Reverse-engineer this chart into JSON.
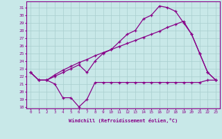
{
  "xlabel": "Windchill (Refroidissement éolien,°C)",
  "x_full": [
    0,
    1,
    2,
    3,
    4,
    5,
    6,
    7,
    8,
    9,
    10,
    11,
    12,
    13,
    14,
    15,
    16,
    17,
    18,
    19,
    20,
    21,
    22,
    23
  ],
  "line_dip_x": [
    0,
    1,
    2,
    3,
    4,
    5,
    6,
    7,
    8,
    9,
    10,
    11,
    12,
    13,
    14,
    15,
    16,
    17,
    18,
    19,
    20,
    21,
    22,
    23
  ],
  "line_dip_y": [
    22.5,
    21.5,
    21.5,
    21.0,
    19.2,
    19.2,
    18.0,
    19.0,
    21.2,
    21.2,
    21.2,
    21.2,
    21.2,
    21.2,
    21.2,
    21.2,
    21.2,
    21.2,
    21.2,
    21.2,
    21.2,
    21.2,
    21.5,
    21.5
  ],
  "line_curve": [
    22.5,
    21.5,
    21.5,
    22.0,
    22.5,
    23.0,
    23.5,
    22.5,
    24.0,
    25.0,
    25.5,
    26.5,
    27.5,
    28.0,
    29.5,
    30.0,
    31.2,
    31.0,
    30.5,
    29.0,
    27.5,
    25.0,
    22.5,
    21.5
  ],
  "line_diag": [
    22.5,
    21.5,
    21.5,
    22.2,
    22.8,
    23.3,
    23.8,
    24.2,
    24.7,
    25.1,
    25.5,
    25.9,
    26.3,
    26.7,
    27.1,
    27.5,
    27.9,
    28.4,
    28.8,
    29.2,
    27.5,
    25.0,
    22.5,
    21.5
  ],
  "ylim": [
    17.8,
    31.8
  ],
  "xlim": [
    -0.5,
    23.5
  ],
  "bg_color": "#c8e8e8",
  "grid_color": "#a8cece",
  "line_color": "#880088",
  "yticks": [
    18,
    19,
    20,
    21,
    22,
    23,
    24,
    25,
    26,
    27,
    28,
    29,
    30,
    31
  ]
}
